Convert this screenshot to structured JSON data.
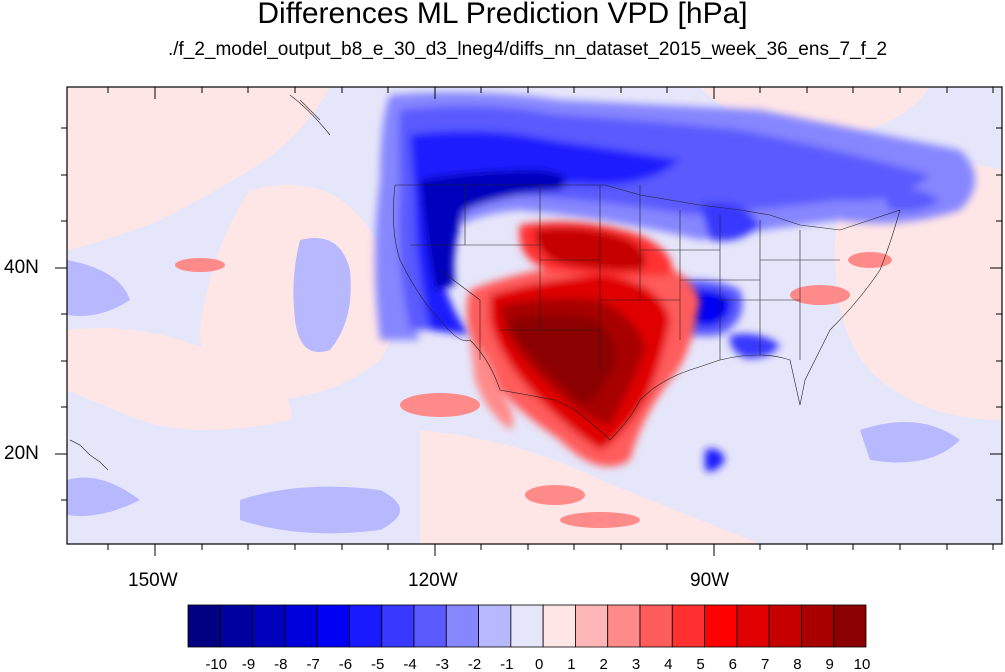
{
  "title": "Differences ML Prediction VPD [hPa]",
  "subtitle": "./f_2_model_output_b8_e_30_d3_lneg4/diffs_nn_dataset_2015_week_36_ens_7_f_2",
  "lon_labels": [
    "150W",
    "120W",
    "90W"
  ],
  "lat_labels": [
    "40N",
    "20N"
  ],
  "colorbar": {
    "labels": [
      "-10",
      "-9",
      "-8",
      "-7",
      "-6",
      "-5",
      "-4",
      "-3",
      "-2",
      "-1",
      "0",
      "1",
      "2",
      "3",
      "4",
      "5",
      "6",
      "7",
      "8",
      "9",
      "10"
    ],
    "colors": [
      "#000080",
      "#00009e",
      "#0000bd",
      "#0000dc",
      "#0000f4",
      "#1a1aff",
      "#3838ff",
      "#5a5aff",
      "#8686ff",
      "#b8b8ff",
      "#e6e6fa",
      "#ffe6e6",
      "#ffb6b6",
      "#ff8a8a",
      "#ff5c5c",
      "#ff3030",
      "#ff0000",
      "#e00000",
      "#c60000",
      "#a80000",
      "#8b0000"
    ]
  }
}
